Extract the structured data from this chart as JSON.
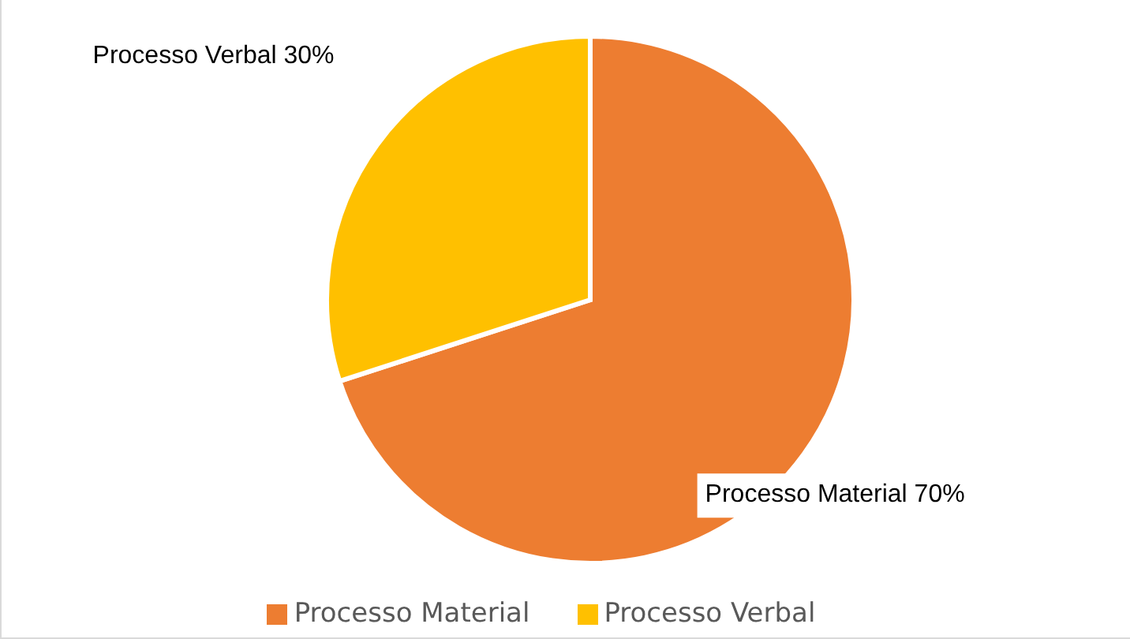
{
  "chart_data": {
    "type": "pie",
    "categories": [
      "Processo Material",
      "Processo Verbal"
    ],
    "values": [
      70,
      30
    ],
    "colors": [
      "#ed7d31",
      "#ffc000"
    ],
    "value_labels": [
      "Processo Material 70%",
      "Processo Verbal 30%"
    ],
    "legend": "bottom"
  }
}
